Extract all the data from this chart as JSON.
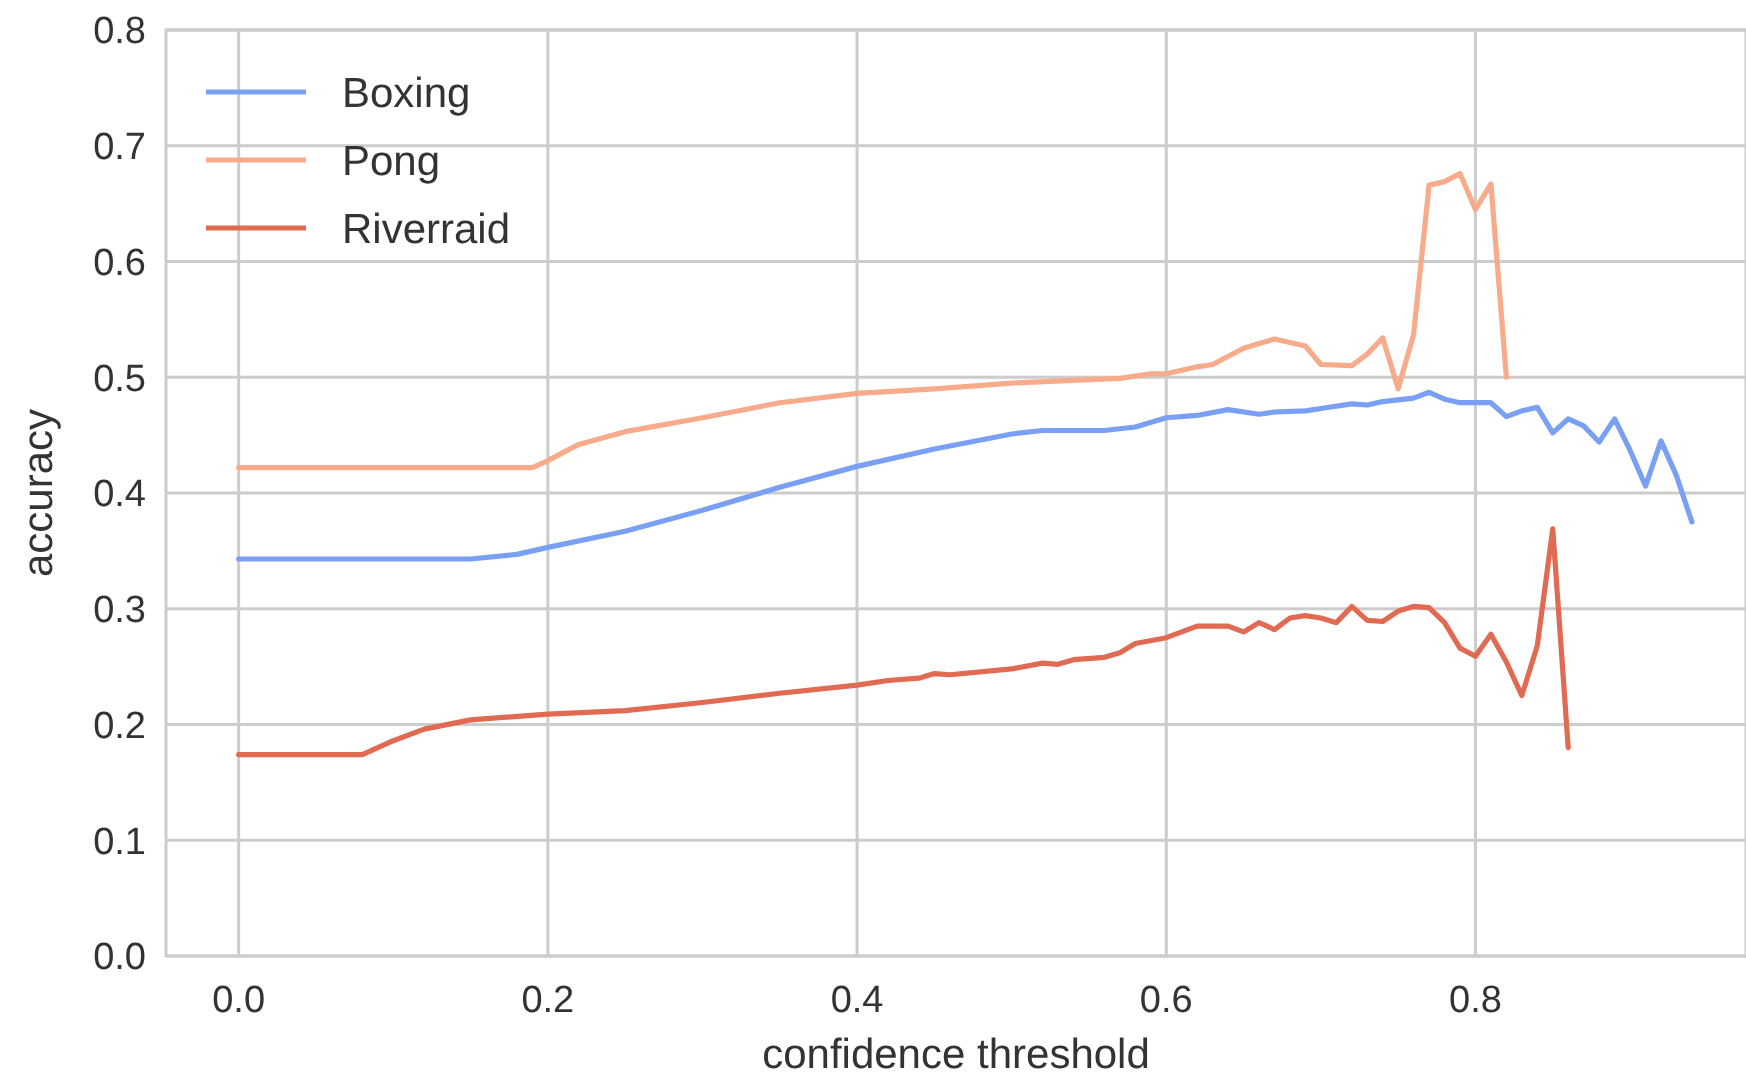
{
  "chart_data": {
    "type": "line",
    "xlabel": "confidence threshold",
    "ylabel": "accuracy",
    "xlim": [
      -0.047,
      0.975
    ],
    "ylim": [
      0,
      0.8
    ],
    "xticks": [
      {
        "value": 0,
        "label": "0.0"
      },
      0.2,
      0.4,
      0.6,
      0.8
    ],
    "yticks": [
      {
        "value": 0,
        "label": "0.0"
      },
      0.1,
      0.2,
      0.3,
      0.4,
      0.5,
      0.6,
      0.7,
      0.8
    ],
    "grid": true,
    "legend": "top left",
    "marker": "none",
    "line_style": "solid",
    "series": [
      {
        "name": "Boxing",
        "color": "#7aa0f5",
        "x": [
          0,
          0.15,
          0.18,
          0.2,
          0.25,
          0.3,
          0.35,
          0.4,
          0.45,
          0.5,
          0.52,
          0.56,
          0.58,
          0.6,
          0.62,
          0.64,
          0.66,
          0.67,
          0.69,
          0.7,
          0.72,
          0.73,
          0.74,
          0.76,
          0.77,
          0.78,
          0.79,
          0.81,
          0.82,
          0.83,
          0.84,
          0.85,
          0.86,
          0.87,
          0.88,
          0.89,
          0.9,
          0.91,
          0.92,
          0.93,
          0.94
        ],
        "values": [
          0.343,
          0.343,
          0.347,
          0.353,
          0.367,
          0.385,
          0.405,
          0.423,
          0.438,
          0.451,
          0.454,
          0.454,
          0.457,
          0.465,
          0.467,
          0.472,
          0.468,
          0.47,
          0.471,
          0.473,
          0.477,
          0.476,
          0.479,
          0.482,
          0.487,
          0.481,
          0.478,
          0.478,
          0.466,
          0.471,
          0.474,
          0.452,
          0.464,
          0.458,
          0.444,
          0.464,
          0.437,
          0.406,
          0.445,
          0.415,
          0.375
        ]
      },
      {
        "name": "Pong",
        "color": "#f7ab8a",
        "x": [
          0,
          0.19,
          0.2,
          0.22,
          0.25,
          0.3,
          0.35,
          0.4,
          0.45,
          0.5,
          0.55,
          0.57,
          0.59,
          0.6,
          0.62,
          0.63,
          0.65,
          0.67,
          0.69,
          0.7,
          0.72,
          0.73,
          0.74,
          0.75,
          0.76,
          0.77,
          0.78,
          0.79,
          0.8,
          0.81,
          0.82
        ],
        "values": [
          0.422,
          0.422,
          0.428,
          0.442,
          0.453,
          0.465,
          0.478,
          0.486,
          0.49,
          0.495,
          0.498,
          0.499,
          0.503,
          0.503,
          0.509,
          0.511,
          0.525,
          0.533,
          0.527,
          0.511,
          0.51,
          0.52,
          0.534,
          0.49,
          0.537,
          0.666,
          0.669,
          0.676,
          0.645,
          0.667,
          0.5
        ]
      },
      {
        "name": "Riverraid",
        "color": "#e06a52",
        "x": [
          0,
          0.08,
          0.1,
          0.12,
          0.15,
          0.2,
          0.25,
          0.3,
          0.35,
          0.4,
          0.42,
          0.44,
          0.45,
          0.46,
          0.5,
          0.52,
          0.53,
          0.54,
          0.56,
          0.57,
          0.58,
          0.6,
          0.62,
          0.64,
          0.65,
          0.66,
          0.67,
          0.68,
          0.69,
          0.7,
          0.71,
          0.72,
          0.73,
          0.74,
          0.75,
          0.76,
          0.77,
          0.78,
          0.79,
          0.8,
          0.81,
          0.82,
          0.83,
          0.84,
          0.85,
          0.86
        ],
        "values": [
          0.174,
          0.174,
          0.186,
          0.196,
          0.204,
          0.209,
          0.212,
          0.219,
          0.227,
          0.234,
          0.238,
          0.24,
          0.244,
          0.243,
          0.248,
          0.253,
          0.252,
          0.256,
          0.258,
          0.262,
          0.27,
          0.275,
          0.285,
          0.285,
          0.28,
          0.288,
          0.282,
          0.292,
          0.294,
          0.292,
          0.288,
          0.302,
          0.29,
          0.289,
          0.298,
          0.302,
          0.301,
          0.288,
          0.266,
          0.259,
          0.278,
          0.254,
          0.225,
          0.268,
          0.369,
          0.18
        ]
      }
    ]
  }
}
